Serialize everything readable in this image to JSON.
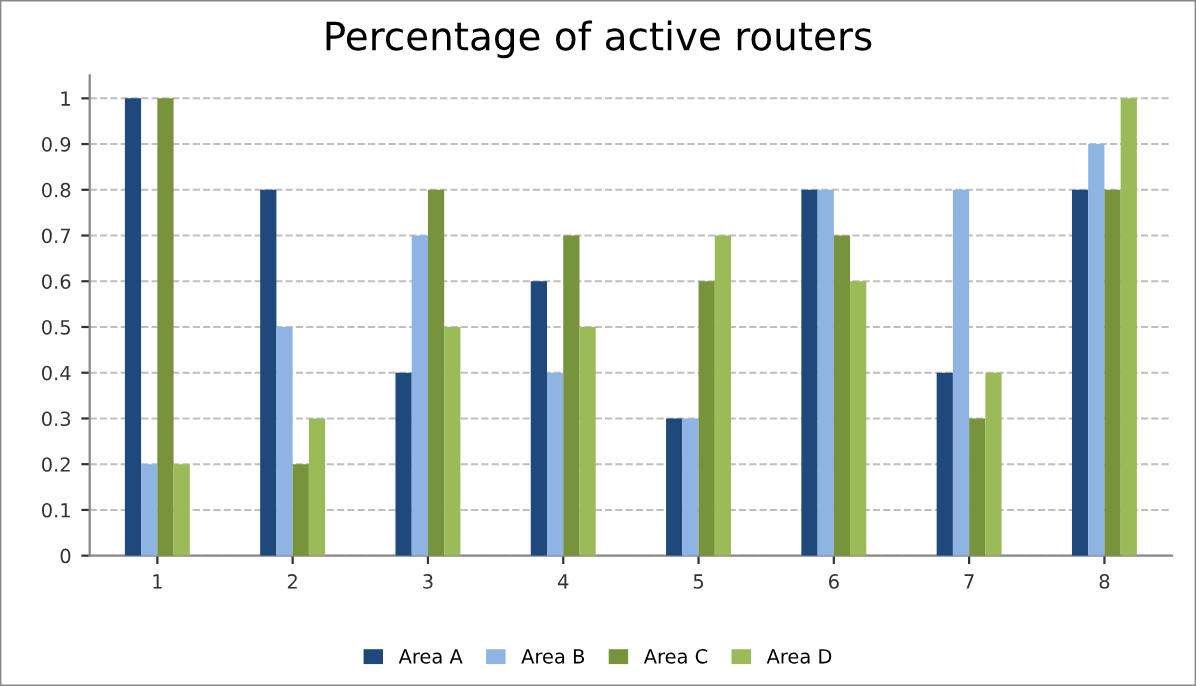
{
  "chart_data": {
    "type": "bar",
    "title": "Percentage of active routers",
    "categories": [
      "1",
      "2",
      "3",
      "4",
      "5",
      "6",
      "7",
      "8"
    ],
    "series": [
      {
        "name": "Area A",
        "color": "#1f497d",
        "values": [
          1,
          0.8,
          0.4,
          0.6,
          0.3,
          0.8,
          0.4,
          0.8
        ]
      },
      {
        "name": "Area B",
        "color": "#8db4e2",
        "values": [
          0.2,
          0.5,
          0.7,
          0.4,
          0.3,
          0.8,
          0.8,
          0.9
        ]
      },
      {
        "name": "Area C",
        "color": "#77933c",
        "values": [
          1,
          0.2,
          0.8,
          0.7,
          0.6,
          0.7,
          0.3,
          0.8
        ]
      },
      {
        "name": "Area D",
        "color": "#9bbb59",
        "values": [
          0.2,
          0.3,
          0.5,
          0.5,
          0.7,
          0.6,
          0.4,
          1
        ]
      }
    ],
    "ylim": [
      0,
      1.05
    ],
    "yticks": [
      0,
      0.1,
      0.2,
      0.3,
      0.4,
      0.5,
      0.6,
      0.7,
      0.8,
      0.9,
      1
    ],
    "grid": "y",
    "legend": "bottom"
  }
}
